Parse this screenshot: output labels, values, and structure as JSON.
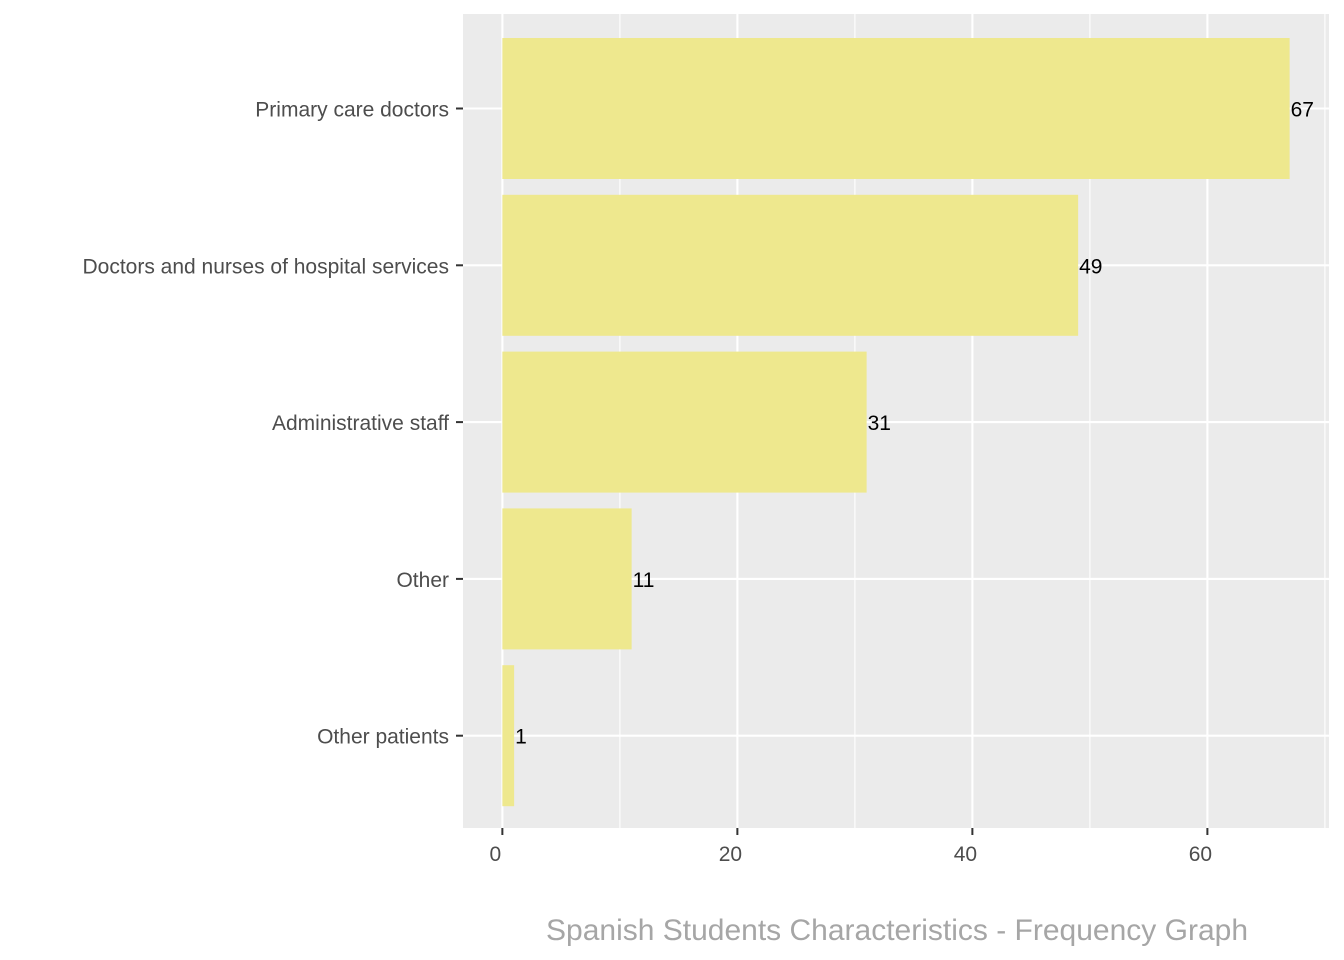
{
  "chart_data": {
    "type": "bar",
    "orientation": "horizontal",
    "title": "",
    "caption": "Spanish Students Characteristics - Frequency Graph",
    "xlabel": "",
    "ylabel": "",
    "categories": [
      "Primary care doctors",
      "Doctors and nurses of hospital services",
      "Administrative staff",
      "Other",
      "Other patients"
    ],
    "values": [
      67,
      49,
      31,
      11,
      1
    ],
    "value_labels": [
      "67",
      "49",
      "31",
      "11",
      "1"
    ],
    "xlim": [
      -3.35,
      70.35
    ],
    "x_ticks": [
      0,
      20,
      40,
      60
    ],
    "x_tick_labels": [
      "0",
      "20",
      "40",
      "60"
    ],
    "x_minor_ticks": [
      10,
      30,
      50,
      70
    ],
    "grid": true,
    "legend": "none"
  },
  "colors": {
    "panel_background": "#ebebeb",
    "grid_major": "#ffffff",
    "bar_fill": "#eee88e",
    "axis_text": "#4d4d4d",
    "value_text": "#000000",
    "caption_text": "#a6a6a6"
  }
}
